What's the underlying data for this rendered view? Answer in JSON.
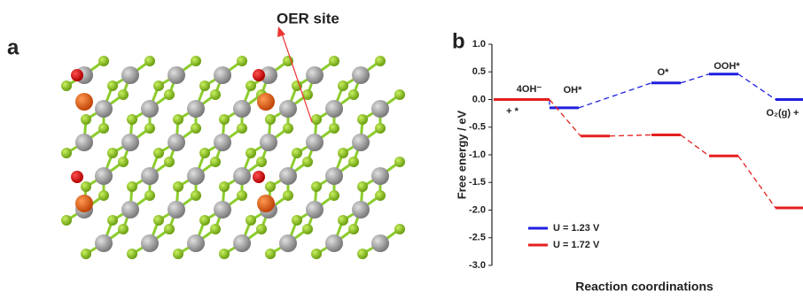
{
  "panel_a": {
    "label": "a",
    "annotation": "OER site"
  },
  "chart_data": {
    "type": "energy-steps",
    "panel_label": "b",
    "x_label": "Reaction coordinations",
    "y_label": "Free energy / eV",
    "ylim": [
      -3.0,
      1.0
    ],
    "yticks": [
      {
        "value": 1.0,
        "label": "1.0"
      },
      0.5,
      {
        "value": 0.0,
        "label": "0.0"
      },
      -0.5,
      {
        "value": -1.0,
        "label": "-1.0"
      },
      -1.5,
      {
        "value": -2.0,
        "label": "-2.0"
      },
      -2.5,
      {
        "value": -3.0,
        "label": "-3.0"
      }
    ],
    "annotations": [
      "4OH⁻",
      "+ *",
      "OH*",
      "O*",
      "OOH*",
      "O₂(g) +"
    ],
    "series": [
      {
        "name": "U = 1.23 V",
        "color": "#1f1fe0",
        "values": [
          0.0,
          -0.15,
          0.3,
          0.46,
          0.0
        ]
      },
      {
        "name": "U = 1.72 V",
        "color": "#e51f1f",
        "values": [
          0.0,
          -0.66,
          -0.64,
          -1.02,
          -1.96
        ]
      }
    ]
  }
}
